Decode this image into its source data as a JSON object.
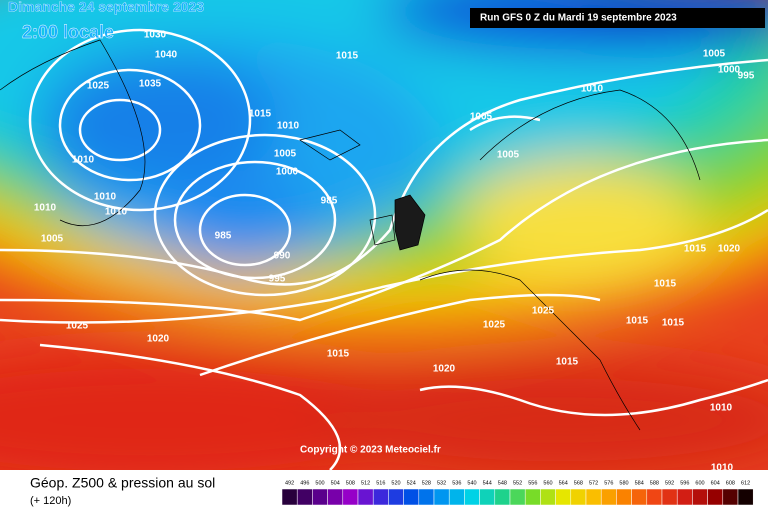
{
  "header": {
    "title": "Dimanche 24 septembre 2023",
    "subtitle": "2:00 locale",
    "run": "Run GFS 0 Z du Mardi 19 septembre 2023"
  },
  "copyright": "Copyright © 2023 Meteociel.fr",
  "footer": {
    "title": "Géop. Z500 & pression au sol",
    "subtitle": "(+ 120h)"
  },
  "colorbar": {
    "labels": [
      492,
      496,
      500,
      504,
      508,
      512,
      516,
      520,
      524,
      528,
      532,
      536,
      540,
      544,
      548,
      552,
      556,
      560,
      564,
      568,
      572,
      576,
      580,
      584,
      588,
      592,
      596,
      600,
      604,
      608,
      612
    ]
  },
  "isobar_labels": [
    1030,
    1040,
    1035,
    1025,
    1015,
    1010,
    1005,
    1000,
    1010,
    1010,
    1010,
    1010,
    1005,
    985,
    985,
    990,
    995,
    1025,
    1020,
    1015,
    1020,
    1025,
    1025,
    1015,
    1015,
    1015,
    1015,
    1015,
    1020,
    1010,
    1005,
    1005,
    1015,
    1005,
    1000,
    995,
    1010,
    1010
  ]
}
